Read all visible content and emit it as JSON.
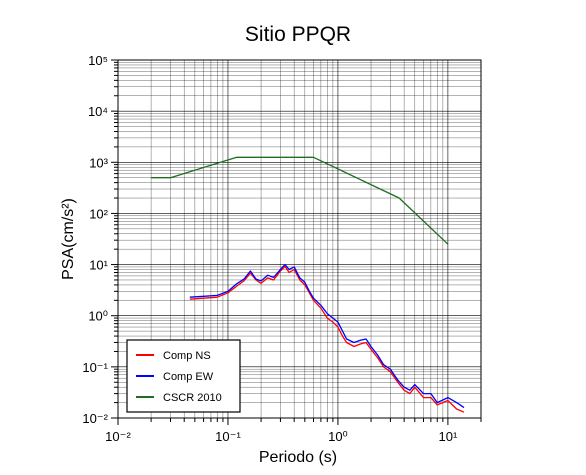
{
  "chart_data": {
    "type": "line",
    "title": "Sitio PPQR",
    "xlabel": "Periodo (s)",
    "ylabel": "PSA(cm/s²)",
    "xscale": "log",
    "yscale": "log",
    "xlim": [
      0.01,
      20
    ],
    "ylim": [
      0.01,
      100000
    ],
    "x_ticks": [
      "10⁻²",
      "10⁻¹",
      "10⁰",
      "10¹"
    ],
    "y_ticks": [
      "10⁻²",
      "10⁻¹",
      "10⁰",
      "10¹",
      "10²",
      "10³",
      "10⁴",
      "10⁵"
    ],
    "grid": true,
    "legend_position": "bottom-left",
    "series": [
      {
        "name": "Comp NS",
        "color": "#ff0000",
        "x": [
          0.045,
          0.06,
          0.08,
          0.1,
          0.12,
          0.14,
          0.16,
          0.18,
          0.2,
          0.23,
          0.26,
          0.3,
          0.33,
          0.36,
          0.4,
          0.45,
          0.5,
          0.55,
          0.6,
          0.7,
          0.8,
          0.9,
          1.0,
          1.1,
          1.2,
          1.4,
          1.6,
          1.8,
          2.0,
          2.3,
          2.6,
          3.0,
          3.5,
          4.0,
          4.5,
          5.0,
          6.0,
          7.0,
          8.0,
          10.0,
          12.0,
          14.0
        ],
        "y": [
          2.1,
          2.2,
          2.3,
          2.8,
          3.8,
          4.8,
          6.8,
          5.0,
          4.3,
          5.5,
          5.0,
          7.5,
          9.2,
          7.0,
          8.0,
          5.0,
          4.0,
          2.8,
          2.0,
          1.4,
          0.9,
          0.75,
          0.6,
          0.4,
          0.3,
          0.25,
          0.28,
          0.3,
          0.22,
          0.15,
          0.1,
          0.08,
          0.05,
          0.035,
          0.03,
          0.04,
          0.025,
          0.025,
          0.018,
          0.022,
          0.015,
          0.013
        ]
      },
      {
        "name": "Comp EW",
        "color": "#0000ff",
        "x": [
          0.045,
          0.06,
          0.08,
          0.1,
          0.12,
          0.14,
          0.16,
          0.18,
          0.2,
          0.23,
          0.26,
          0.3,
          0.33,
          0.36,
          0.4,
          0.45,
          0.5,
          0.55,
          0.6,
          0.7,
          0.8,
          0.9,
          1.0,
          1.1,
          1.2,
          1.4,
          1.6,
          1.8,
          2.0,
          2.3,
          2.6,
          3.0,
          3.5,
          4.0,
          4.5,
          5.0,
          6.0,
          7.0,
          8.0,
          10.0,
          12.0,
          14.0
        ],
        "y": [
          2.3,
          2.4,
          2.5,
          3.0,
          4.2,
          5.2,
          7.5,
          5.2,
          4.8,
          6.2,
          5.6,
          8.0,
          10.0,
          8.0,
          9.0,
          5.5,
          4.5,
          3.0,
          2.2,
          1.6,
          1.1,
          0.9,
          0.75,
          0.5,
          0.35,
          0.3,
          0.33,
          0.35,
          0.25,
          0.17,
          0.11,
          0.09,
          0.055,
          0.04,
          0.035,
          0.045,
          0.03,
          0.03,
          0.02,
          0.025,
          0.02,
          0.016
        ]
      },
      {
        "name": "CSCR 2010",
        "color": "#1e6e1e",
        "x": [
          0.02,
          0.03,
          0.12,
          0.6,
          3.6,
          10.0
        ],
        "y": [
          500,
          500,
          1250,
          1250,
          200,
          25
        ]
      }
    ]
  }
}
